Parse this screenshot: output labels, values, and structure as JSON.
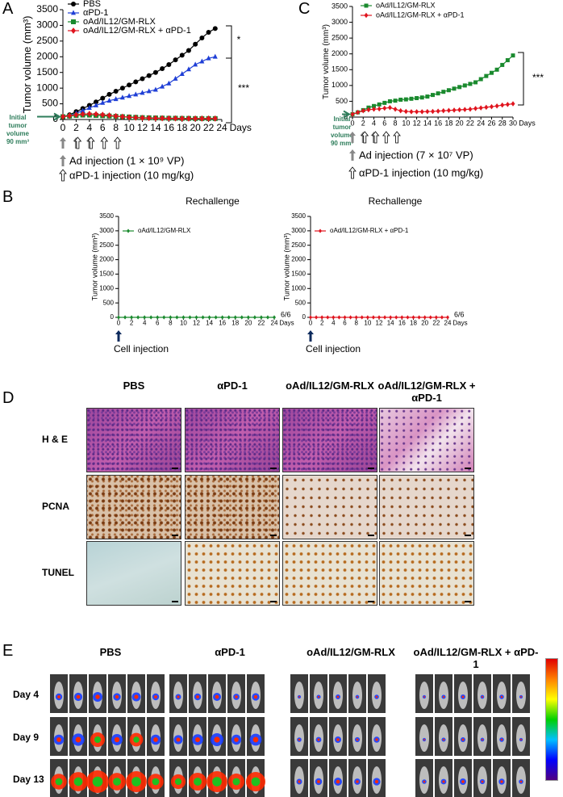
{
  "panel_labels": [
    "A",
    "B",
    "C",
    "D",
    "E"
  ],
  "chart_data": [
    {
      "type": "line",
      "y_label": "Tumor volume (mm³)",
      "x_label": "Days",
      "x": [
        0,
        1,
        2,
        3,
        4,
        5,
        6,
        7,
        8,
        9,
        10,
        11,
        12,
        13,
        14,
        15,
        16,
        17,
        18,
        19,
        20,
        21,
        22,
        23
      ],
      "xlim": [
        0,
        24
      ],
      "xticks": [
        0,
        2,
        4,
        6,
        8,
        10,
        12,
        14,
        16,
        18,
        20,
        22,
        24
      ],
      "ylim": [
        0,
        3500
      ],
      "yticks": [
        0,
        500,
        1000,
        1500,
        2000,
        2500,
        3000,
        3500
      ],
      "series": [
        {
          "name": "PBS",
          "color": "#000000",
          "marker": "circle",
          "values": [
            90,
            150,
            250,
            350,
            450,
            560,
            680,
            800,
            900,
            1000,
            1100,
            1200,
            1300,
            1400,
            1500,
            1620,
            1750,
            1900,
            2050,
            2200,
            2400,
            2600,
            2780,
            2900
          ]
        },
        {
          "name": "αPD-1",
          "color": "#1f3fd6",
          "marker": "triangle",
          "values": [
            90,
            130,
            200,
            280,
            370,
            450,
            530,
            600,
            650,
            700,
            750,
            800,
            850,
            900,
            950,
            1050,
            1150,
            1300,
            1450,
            1600,
            1750,
            1850,
            1950,
            2000
          ]
        },
        {
          "name": "oAd/IL12/GM-RLX",
          "color": "#1a8a2e",
          "marker": "square",
          "values": [
            90,
            110,
            130,
            140,
            140,
            130,
            120,
            110,
            100,
            90,
            80,
            70,
            60,
            55,
            50,
            45,
            40,
            40,
            35,
            35,
            30,
            30,
            30,
            30
          ]
        },
        {
          "name": "oAd/IL12/GM-RLX + αPD-1",
          "color": "#e0141e",
          "marker": "diamond",
          "values": [
            90,
            120,
            150,
            170,
            180,
            170,
            150,
            130,
            110,
            90,
            70,
            60,
            50,
            45,
            40,
            40,
            35,
            35,
            30,
            30,
            30,
            30,
            30,
            30
          ]
        }
      ],
      "significance": [
        "*",
        "***"
      ],
      "initial_volume": {
        "label": [
          "Initial",
          "tumor",
          "volume",
          "90 mm³"
        ],
        "value": 90
      },
      "ad_injection": {
        "label": "Ad injection (1 × 10⁹ VP)",
        "days": [
          0,
          2,
          4
        ]
      },
      "apd1_injection": {
        "label": "αPD-1 injection (10 mg/kg)",
        "days": [
          2,
          4,
          6,
          8
        ]
      }
    },
    {
      "type": "line",
      "y_label": "Tumor volume (mm³)",
      "x_label": "Days",
      "x": [
        0,
        1,
        2,
        3,
        4,
        5,
        6,
        7,
        8,
        9,
        10,
        11,
        12,
        13,
        14,
        15,
        16,
        17,
        18,
        19,
        20,
        21,
        22,
        23,
        24,
        25,
        26,
        27,
        28,
        29,
        30
      ],
      "xlim": [
        0,
        30
      ],
      "xticks": [
        0,
        2,
        4,
        6,
        8,
        10,
        12,
        14,
        16,
        18,
        20,
        22,
        24,
        26,
        28,
        30
      ],
      "ylim": [
        0,
        3500
      ],
      "yticks": [
        0,
        500,
        1000,
        1500,
        2000,
        2500,
        3000,
        3500
      ],
      "series": [
        {
          "name": "oAd/IL12/GM-RLX",
          "color": "#1a8a2e",
          "marker": "square",
          "values": [
            90,
            150,
            220,
            300,
            350,
            400,
            450,
            500,
            520,
            550,
            560,
            580,
            600,
            620,
            650,
            700,
            750,
            800,
            850,
            900,
            950,
            1000,
            1050,
            1100,
            1200,
            1300,
            1400,
            1500,
            1650,
            1800,
            1950
          ]
        },
        {
          "name": "oAd/IL12/GM-RLX + αPD-1",
          "color": "#e0141e",
          "marker": "diamond",
          "values": [
            90,
            150,
            200,
            230,
            250,
            260,
            280,
            300,
            250,
            200,
            180,
            170,
            170,
            170,
            175,
            180,
            190,
            200,
            210,
            220,
            230,
            240,
            250,
            270,
            290,
            310,
            330,
            350,
            380,
            400,
            420
          ]
        }
      ],
      "significance": [
        "***"
      ],
      "initial_volume": {
        "label": [
          "Initial",
          "tumor",
          "volume",
          "90 mm³"
        ],
        "value": 90
      },
      "ad_injection": {
        "label": "Ad injection (7 × 10⁷ VP)",
        "days": [
          0,
          2,
          4
        ]
      },
      "apd1_injection": {
        "label": "αPD-1 injection (10 mg/kg)",
        "days": [
          2,
          4,
          6,
          8
        ]
      }
    },
    {
      "type": "line",
      "title": "Rechallenge",
      "y_label": "Tumor volume (mm³)",
      "x_label": "Days",
      "x": [
        0,
        1,
        2,
        3,
        4,
        5,
        6,
        7,
        8,
        9,
        10,
        11,
        12,
        13,
        14,
        15,
        16,
        17,
        18,
        19,
        20,
        21,
        22,
        23,
        24
      ],
      "xlim": [
        0,
        24
      ],
      "xticks": [
        0,
        2,
        4,
        6,
        8,
        10,
        12,
        14,
        16,
        18,
        20,
        22,
        24
      ],
      "ylim": [
        0,
        3500
      ],
      "yticks": [
        0,
        500,
        1000,
        1500,
        2000,
        2500,
        3000,
        3500
      ],
      "series": [
        {
          "name": "oAd/IL12/GM-RLX",
          "color": "#1a8a2e",
          "marker": "diamond",
          "values": [
            0,
            0,
            0,
            0,
            0,
            0,
            0,
            0,
            0,
            0,
            0,
            0,
            0,
            0,
            0,
            0,
            0,
            0,
            0,
            0,
            0,
            0,
            0,
            0,
            0
          ]
        }
      ],
      "end_label": "6/6",
      "cell_injection": {
        "label": "Cell injection",
        "day": 0
      }
    },
    {
      "type": "line",
      "title": "Rechallenge",
      "y_label": "Tumor volume (mm³)",
      "x_label": "Days",
      "x": [
        0,
        1,
        2,
        3,
        4,
        5,
        6,
        7,
        8,
        9,
        10,
        11,
        12,
        13,
        14,
        15,
        16,
        17,
        18,
        19,
        20,
        21,
        22,
        23,
        24
      ],
      "xlim": [
        0,
        24
      ],
      "xticks": [
        0,
        2,
        4,
        6,
        8,
        10,
        12,
        14,
        16,
        18,
        20,
        22,
        24
      ],
      "ylim": [
        0,
        3500
      ],
      "yticks": [
        0,
        500,
        1000,
        1500,
        2000,
        2500,
        3000,
        3500
      ],
      "series": [
        {
          "name": "oAd/IL12/GM-RLX + αPD-1",
          "color": "#e0141e",
          "marker": "diamond",
          "values": [
            0,
            0,
            0,
            0,
            0,
            0,
            0,
            0,
            0,
            0,
            0,
            0,
            0,
            0,
            0,
            0,
            0,
            0,
            0,
            0,
            0,
            0,
            0,
            0,
            0
          ]
        }
      ],
      "end_label": "6/6",
      "cell_injection": {
        "label": "Cell injection",
        "day": 0
      }
    }
  ],
  "histology": {
    "columns": [
      "PBS",
      "αPD-1",
      "oAd/IL12/GM-RLX",
      "oAd/IL12/GM-RLX + αPD-1"
    ],
    "rows": [
      "H & E",
      "PCNA",
      "TUNEL"
    ]
  },
  "imaging": {
    "columns": [
      "PBS",
      "αPD-1",
      "oAd/IL12/GM-RLX",
      "oAd/IL12/GM-RLX + αPD-1"
    ],
    "rows": [
      "Day 4",
      "Day 9",
      "Day 13"
    ]
  }
}
